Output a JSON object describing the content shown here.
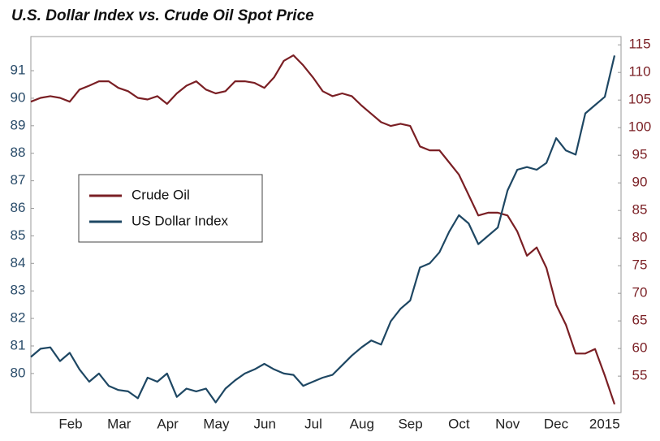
{
  "chart_data": {
    "type": "line",
    "title": "U.S. Dollar Index vs. Crude Oil Spot Price",
    "x_tick_labels": [
      "Feb",
      "Mar",
      "Apr",
      "May",
      "Jun",
      "Jul",
      "Aug",
      "Sep",
      "Oct",
      "Nov",
      "Dec",
      "2015"
    ],
    "ylim": [
      78.58,
      92.24
    ],
    "yticks": [
      80,
      81,
      82,
      83,
      84,
      85,
      86,
      87,
      88,
      89,
      90,
      91
    ],
    "y2lim": [
      48.4,
      116.5
    ],
    "y2ticks": [
      55,
      60,
      65,
      70,
      75,
      80,
      85,
      90,
      95,
      100,
      105,
      110,
      115
    ],
    "grid": false,
    "legend": "upper left",
    "series": [
      {
        "name": "Crude Oil",
        "color": "#7a1f24",
        "axis": "y2",
        "values": [
          104.7,
          105.4,
          105.7,
          105.4,
          104.7,
          106.9,
          107.6,
          108.4,
          108.4,
          107.2,
          106.6,
          105.4,
          105.1,
          105.7,
          104.3,
          106.2,
          107.6,
          108.4,
          106.9,
          106.2,
          106.6,
          108.4,
          108.4,
          108.1,
          107.2,
          109.1,
          112.1,
          113.1,
          111.3,
          109.1,
          106.6,
          105.7,
          106.2,
          105.7,
          104.0,
          102.5,
          101.0,
          100.3,
          100.7,
          100.3,
          96.6,
          95.9,
          95.9,
          93.7,
          91.5,
          87.8,
          84.1,
          84.6,
          84.6,
          84.1,
          81.2,
          76.8,
          78.3,
          74.6,
          67.9,
          64.3,
          59.1,
          59.1,
          59.9,
          55.1,
          49.9
        ]
      },
      {
        "name": "US Dollar Index",
        "color": "#1e4763",
        "axis": "y",
        "values": [
          80.6,
          80.9,
          80.95,
          80.45,
          80.75,
          80.15,
          79.7,
          80.0,
          79.55,
          79.4,
          79.35,
          79.1,
          79.85,
          79.7,
          80.0,
          79.15,
          79.45,
          79.35,
          79.45,
          78.95,
          79.45,
          79.75,
          80.0,
          80.15,
          80.35,
          80.15,
          80.0,
          79.95,
          79.55,
          79.7,
          79.85,
          79.95,
          80.3,
          80.65,
          80.95,
          81.2,
          81.05,
          81.9,
          82.35,
          82.65,
          83.85,
          84.0,
          84.4,
          85.15,
          85.75,
          85.45,
          84.7,
          85.0,
          85.3,
          86.65,
          87.4,
          87.5,
          87.4,
          87.65,
          88.55,
          88.1,
          87.95,
          89.45,
          89.75,
          90.05,
          91.55
        ]
      }
    ]
  }
}
